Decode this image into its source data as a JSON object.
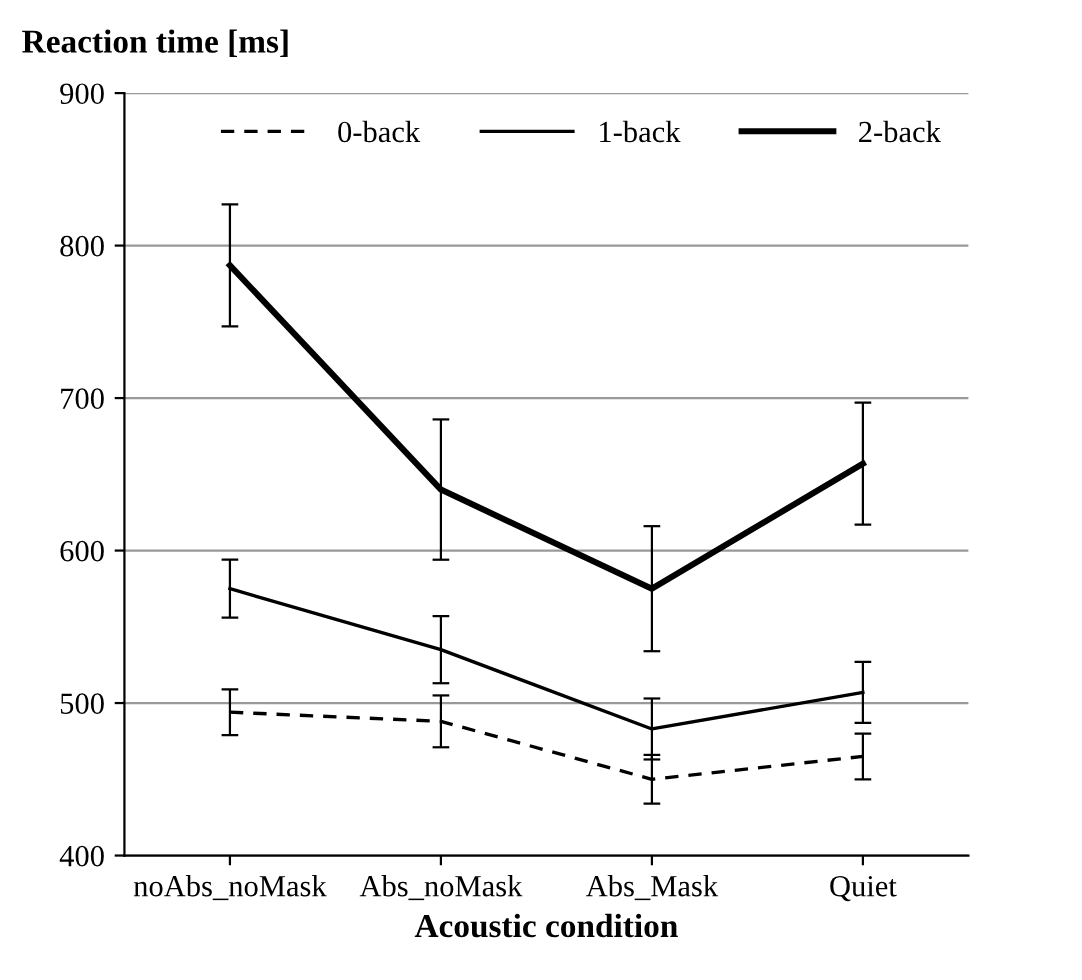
{
  "chart_data": {
    "type": "line",
    "title": "Reaction time [ms]",
    "xlabel": "Acoustic condition",
    "categories": [
      "noAbs_noMask",
      "Abs_noMask",
      "Abs_Mask",
      "Quiet"
    ],
    "series": [
      {
        "name": "0-back",
        "color": "#000000",
        "line_style": "dashed",
        "values": [
          494,
          488,
          450,
          465
        ],
        "errors": [
          15,
          17,
          16,
          15
        ]
      },
      {
        "name": "1-back",
        "color": "#000000",
        "line_style": "solid",
        "values": [
          575,
          535,
          483,
          507
        ],
        "errors": [
          19,
          22,
          20,
          20
        ]
      },
      {
        "name": "2-back",
        "color": "#000000",
        "line_style": "solid",
        "values": [
          787,
          640,
          575,
          657
        ],
        "errors": [
          40,
          46,
          41,
          40
        ]
      }
    ],
    "ylim": [
      400,
      900
    ],
    "yticks": [
      400,
      500,
      600,
      700,
      800,
      900
    ],
    "grid": "y",
    "legend": "top right",
    "marker": "none"
  }
}
